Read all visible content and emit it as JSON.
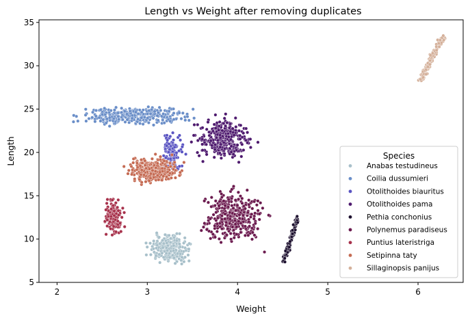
{
  "chart_data": {
    "type": "scatter",
    "title": "Length vs Weight after removing duplicates",
    "xlabel": "Weight",
    "ylabel": "Length",
    "xlim": [
      1.8,
      6.5
    ],
    "ylim": [
      5,
      35.3
    ],
    "xticks": [
      2,
      3,
      4,
      5,
      6
    ],
    "yticks": [
      5,
      10,
      15,
      20,
      25,
      30,
      35
    ],
    "grid": false,
    "legend": {
      "title": "Species",
      "placement": "lower-right"
    },
    "series": [
      {
        "name": "Anabas testudineus",
        "color": "#a8c0ca",
        "cluster": {
          "x": [
            2.95,
            3.55
          ],
          "y": [
            6.8,
            11.0
          ],
          "count": 280,
          "slope": 0
        }
      },
      {
        "name": "Coilia dussumieri",
        "color": "#6a8ec8",
        "cluster": {
          "x": [
            2.05,
            3.65
          ],
          "y": [
            22.7,
            25.7
          ],
          "count": 320,
          "slope": 0
        }
      },
      {
        "name": "Otolithoides biauritus",
        "color": "#5a54c2",
        "cluster": {
          "x": [
            3.1,
            3.45
          ],
          "y": [
            16.5,
            23.5
          ],
          "count": 110,
          "slope": 0
        }
      },
      {
        "name": "Otolithoides pama",
        "color": "#4e1a6e",
        "cluster": {
          "x": [
            3.45,
            4.25
          ],
          "y": [
            18.5,
            24.5
          ],
          "count": 340,
          "slope": 0
        }
      },
      {
        "name": "Pethia conchonius",
        "color": "#1c0f2e",
        "cluster": {
          "x": [
            4.5,
            4.68
          ],
          "y": [
            7.0,
            13.0
          ],
          "count": 120,
          "slope": 1
        }
      },
      {
        "name": "Polynemus paradiseus",
        "color": "#6b1a4e",
        "cluster": {
          "x": [
            3.5,
            4.4
          ],
          "y": [
            8.5,
            16.8
          ],
          "count": 360,
          "slope": 0
        }
      },
      {
        "name": "Puntius lateristriga",
        "color": "#a7314b",
        "cluster": {
          "x": [
            2.5,
            2.75
          ],
          "y": [
            9.8,
            15.3
          ],
          "count": 160,
          "slope": 0
        }
      },
      {
        "name": "Setipinna taty",
        "color": "#c56b53",
        "cluster": {
          "x": [
            2.7,
            3.45
          ],
          "y": [
            16.0,
            20.0
          ],
          "count": 330,
          "slope": 0
        }
      },
      {
        "name": "Sillaginopsis panijus",
        "color": "#d4b09a",
        "cluster": {
          "x": [
            6.0,
            6.3
          ],
          "y": [
            27.7,
            33.9
          ],
          "count": 150,
          "slope": 1
        }
      }
    ]
  }
}
